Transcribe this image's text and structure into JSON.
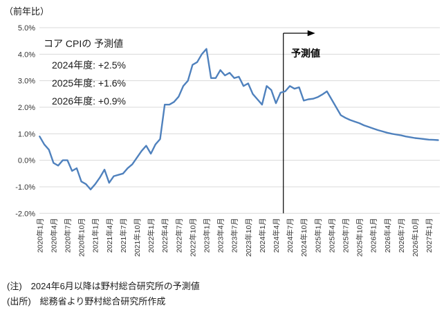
{
  "header": {
    "unit_label": "（前年比）"
  },
  "annotation": {
    "title": "コア CPIの 予測値",
    "lines": [
      "2024年度: +2.5%",
      "2025年度: +1.6%",
      "2026年度: +0.9%"
    ]
  },
  "forecast": {
    "label": "予測値"
  },
  "notes": {
    "note1": "(注)　2024年6月以降は野村総合研究所の予測値",
    "note2": "(出所)　総務省より野村総合研究所作成"
  },
  "chart_data": {
    "type": "line",
    "title": "",
    "xlabel": "",
    "ylabel": "前年比",
    "ylim": [
      -2.0,
      5.0
    ],
    "grid": true,
    "legend": "none",
    "line_color": "#4F81BD",
    "gridline_color": "#D9D9D9",
    "forecast_line_color": "#000000",
    "x_start_month": "2020年1月",
    "x_end_month": "2027年3月",
    "forecast_from": "2024年6月",
    "y_ticks": [
      "5.0%",
      "4.0%",
      "3.0%",
      "2.0%",
      "1.0%",
      "0.0%",
      "-1.0%",
      "-2.0%"
    ],
    "x_tick_labels": [
      "2020年1月",
      "2020年4月",
      "2020年7月",
      "2020年10月",
      "2021年1月",
      "2021年4月",
      "2021年7月",
      "2021年10月",
      "2022年1月",
      "2022年4月",
      "2022年7月",
      "2022年10月",
      "2023年1月",
      "2023年4月",
      "2023年7月",
      "2023年10月",
      "2024年1月",
      "2024年4月",
      "2024年7月",
      "2024年10月",
      "2025年1月",
      "2025年4月",
      "2025年7月",
      "2025年10月",
      "2026年1月",
      "2026年4月",
      "2026年7月",
      "2026年10月",
      "2027年1月"
    ],
    "series": [
      {
        "name": "コアCPI前年比",
        "color": "#4F81BD",
        "values": [
          0.9,
          0.6,
          0.4,
          -0.1,
          -0.2,
          0.0,
          0.0,
          -0.4,
          -0.3,
          -0.8,
          -0.9,
          -1.1,
          -0.9,
          -0.65,
          -0.35,
          -0.85,
          -0.6,
          -0.55,
          -0.5,
          -0.3,
          -0.15,
          0.1,
          0.35,
          0.55,
          0.25,
          0.6,
          0.8,
          2.1,
          2.1,
          2.2,
          2.4,
          2.8,
          3.0,
          3.6,
          3.7,
          4.0,
          4.2,
          3.1,
          3.1,
          3.4,
          3.2,
          3.3,
          3.1,
          3.15,
          2.8,
          2.9,
          2.5,
          2.3,
          2.1,
          2.8,
          2.65,
          2.15,
          2.55,
          2.6,
          2.8,
          2.7,
          2.75,
          2.25,
          2.3,
          2.32,
          2.38,
          2.48,
          2.6,
          2.3,
          2.0,
          1.7,
          1.6,
          1.52,
          1.46,
          1.4,
          1.32,
          1.26,
          1.2,
          1.14,
          1.09,
          1.04,
          1.0,
          0.97,
          0.94,
          0.9,
          0.87,
          0.84,
          0.82,
          0.8,
          0.78,
          0.77,
          0.76
        ]
      }
    ],
    "forecast_boundary_index": 52.6
  }
}
